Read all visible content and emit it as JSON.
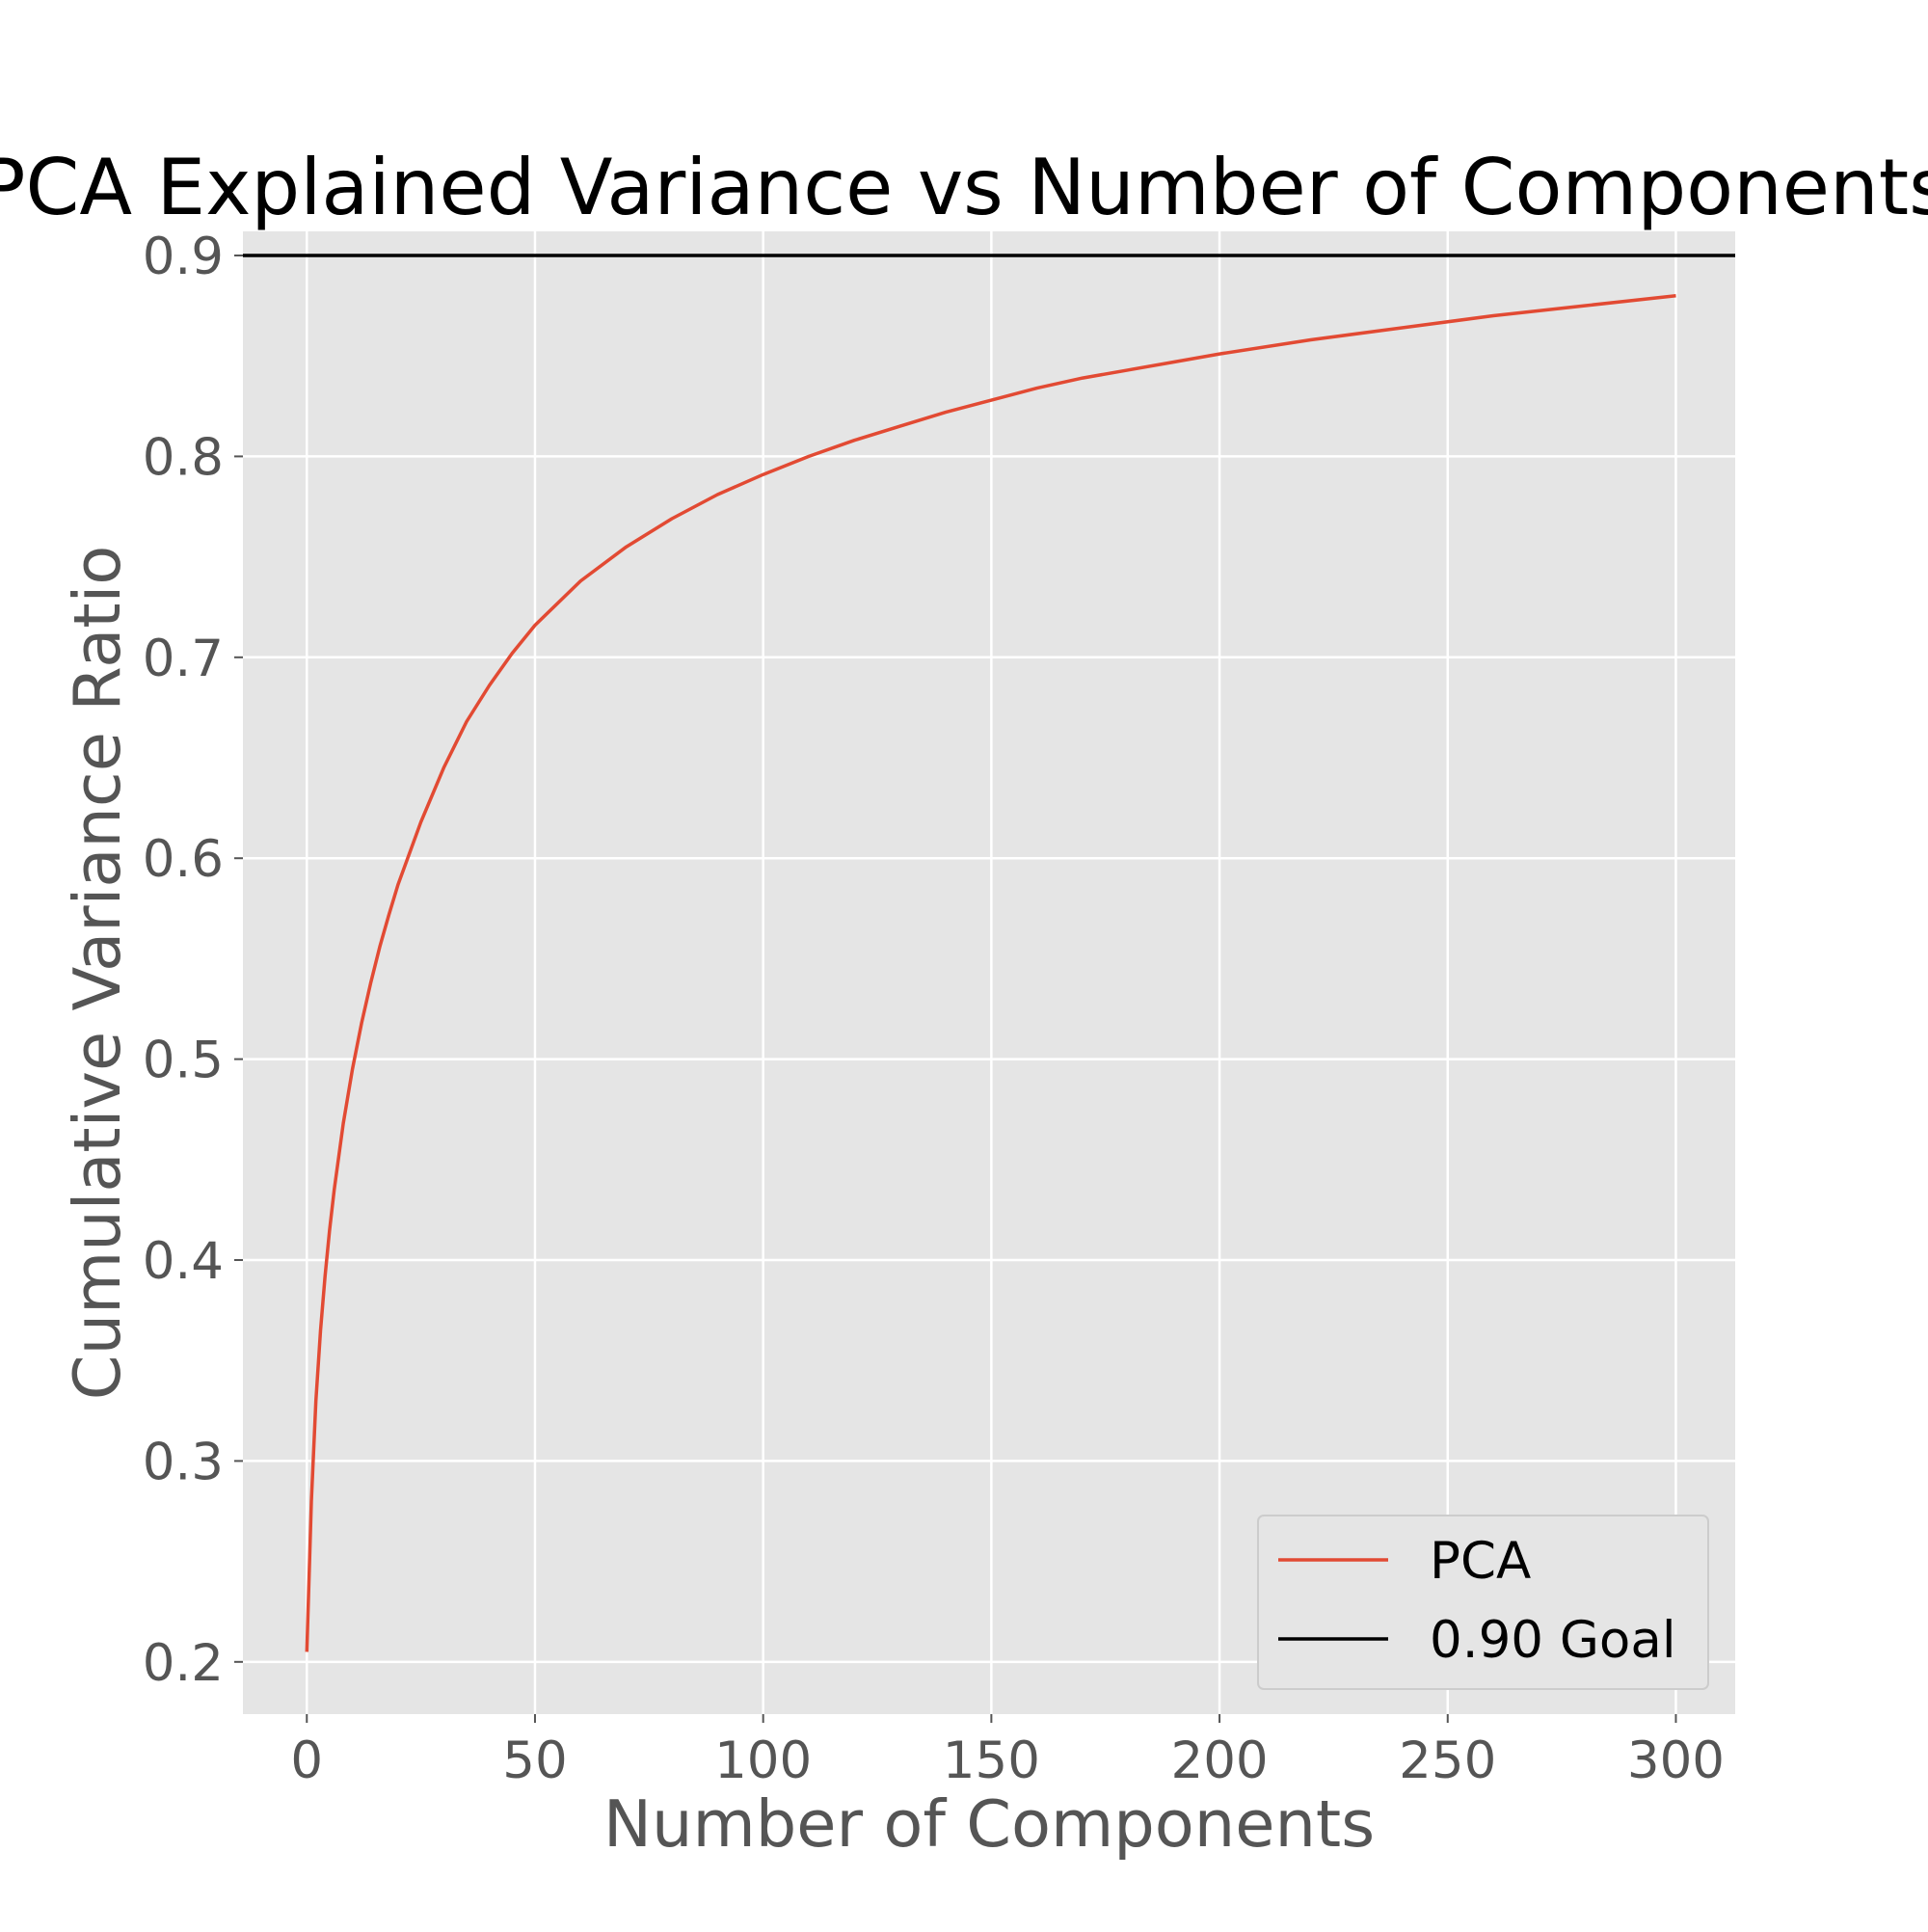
{
  "chart_data": {
    "type": "line",
    "title": "PCA Explained Variance vs Number of Components",
    "xlabel": "Number of Components",
    "ylabel": "Cumulative Variance Ratio",
    "xlim": [
      -14,
      313
    ],
    "ylim": [
      0.174,
      0.912
    ],
    "xticks": [
      0,
      50,
      100,
      150,
      200,
      250,
      300
    ],
    "yticks": [
      0.2,
      0.3,
      0.4,
      0.5,
      0.6,
      0.7,
      0.8,
      0.9
    ],
    "grid": true,
    "legend_position": "lower right",
    "series": [
      {
        "name": "PCA",
        "color": "#E24A33",
        "x": [
          0,
          1,
          2,
          3,
          4,
          5,
          6,
          8,
          10,
          12,
          14,
          16,
          18,
          20,
          25,
          30,
          35,
          40,
          45,
          50,
          60,
          70,
          80,
          90,
          100,
          110,
          120,
          130,
          140,
          150,
          160,
          170,
          180,
          190,
          200,
          220,
          240,
          260,
          280,
          300
        ],
        "values": [
          0.205,
          0.28,
          0.33,
          0.365,
          0.392,
          0.415,
          0.435,
          0.468,
          0.495,
          0.518,
          0.538,
          0.556,
          0.572,
          0.587,
          0.618,
          0.645,
          0.668,
          0.686,
          0.702,
          0.716,
          0.738,
          0.755,
          0.769,
          0.781,
          0.791,
          0.8,
          0.808,
          0.815,
          0.822,
          0.828,
          0.834,
          0.839,
          0.843,
          0.847,
          0.851,
          0.858,
          0.864,
          0.87,
          0.875,
          0.88
        ]
      },
      {
        "name": "0.90 Goal",
        "color": "#000000",
        "y": 0.9
      }
    ]
  }
}
